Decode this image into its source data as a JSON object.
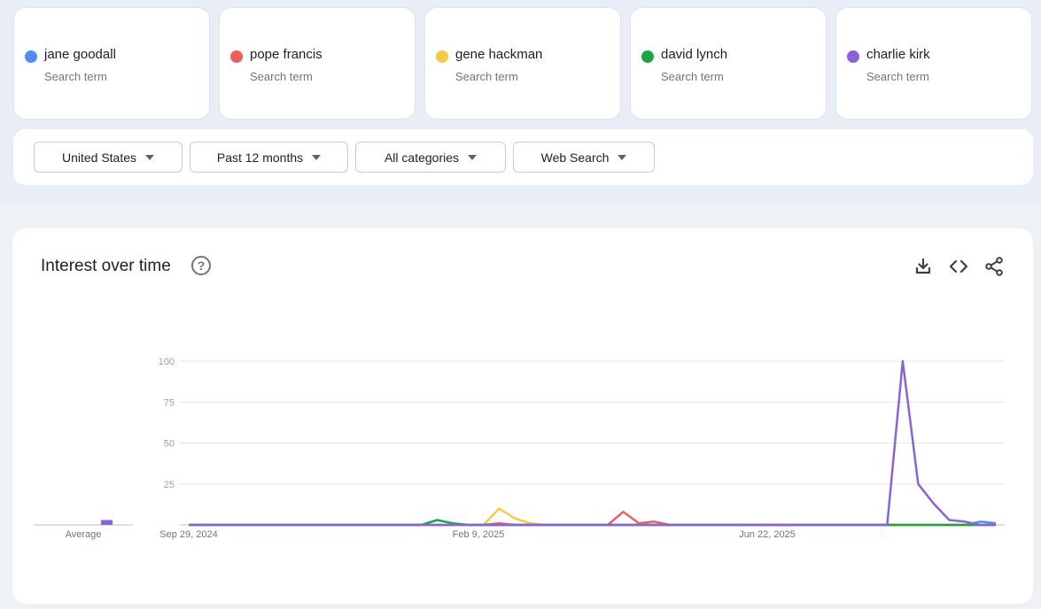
{
  "terms": [
    {
      "name": "jane goodall",
      "sub": "Search term",
      "color": "#4f8ef7"
    },
    {
      "name": "pope francis",
      "sub": "Search term",
      "color": "#e8625b"
    },
    {
      "name": "gene hackman",
      "sub": "Search term",
      "color": "#f7ca46"
    },
    {
      "name": "david lynch",
      "sub": "Search term",
      "color": "#1ea446"
    },
    {
      "name": "charlie kirk",
      "sub": "Search term",
      "color": "#8a63d8"
    }
  ],
  "filters": {
    "region": "United States",
    "time": "Past 12 months",
    "category": "All categories",
    "search_type": "Web Search"
  },
  "panel": {
    "title": "Interest over time",
    "help_icon": "help-circle-icon",
    "actions": [
      "download-icon",
      "embed-code-icon",
      "share-icon"
    ]
  },
  "chart_data": {
    "type": "line",
    "ylim": [
      0,
      100
    ],
    "yticks": [
      25,
      50,
      75,
      100
    ],
    "x_labels": [
      "Sep 29, 2024",
      "Feb 9, 2025",
      "Jun 22, 2025"
    ],
    "average_label": "Average",
    "averages": [
      {
        "name": "jane goodall",
        "value": 0
      },
      {
        "name": "pope francis",
        "value": 0
      },
      {
        "name": "gene hackman",
        "value": 0
      },
      {
        "name": "david lynch",
        "value": 0
      },
      {
        "name": "charlie kirk",
        "value": 3
      }
    ],
    "series": [
      {
        "name": "jane goodall",
        "color": "#4f8ef7",
        "values": [
          0,
          0,
          0,
          0,
          0,
          0,
          0,
          0,
          0,
          0,
          0,
          0,
          0,
          0,
          0,
          0,
          0,
          0,
          0,
          0,
          0,
          0,
          0,
          0,
          0,
          0,
          0,
          0,
          0,
          0,
          0,
          0,
          0,
          0,
          0,
          0,
          0,
          0,
          0,
          0,
          0,
          0,
          0,
          0,
          0,
          0,
          0,
          0,
          0,
          0,
          0,
          2,
          1
        ]
      },
      {
        "name": "pope francis",
        "color": "#e8625b",
        "values": [
          0,
          0,
          0,
          0,
          0,
          0,
          0,
          0,
          0,
          0,
          0,
          0,
          0,
          0,
          0,
          0,
          0,
          0,
          0,
          0,
          1,
          0,
          0,
          0,
          0,
          0,
          0,
          0,
          8,
          1,
          2,
          0,
          0,
          0,
          0,
          0,
          0,
          0,
          0,
          0,
          0,
          0,
          0,
          0,
          0,
          0,
          0,
          0,
          0,
          0,
          0,
          0,
          0
        ]
      },
      {
        "name": "gene hackman",
        "color": "#f7ca46",
        "values": [
          0,
          0,
          0,
          0,
          0,
          0,
          0,
          0,
          0,
          0,
          0,
          0,
          0,
          0,
          0,
          0,
          0,
          0,
          0,
          0,
          10,
          4,
          1,
          0,
          0,
          0,
          0,
          0,
          0,
          0,
          0,
          0,
          0,
          0,
          0,
          0,
          0,
          0,
          0,
          0,
          0,
          0,
          0,
          0,
          0,
          0,
          0,
          0,
          0,
          0,
          0,
          0,
          0
        ]
      },
      {
        "name": "david lynch",
        "color": "#1ea446",
        "values": [
          0,
          0,
          0,
          0,
          0,
          0,
          0,
          0,
          0,
          0,
          0,
          0,
          0,
          0,
          0,
          0,
          3,
          1,
          0,
          0,
          0,
          0,
          0,
          0,
          0,
          0,
          0,
          0,
          0,
          0,
          0,
          0,
          0,
          0,
          0,
          0,
          0,
          0,
          0,
          0,
          0,
          0,
          0,
          0,
          0,
          0,
          0,
          0,
          0,
          0,
          0,
          0,
          0
        ]
      },
      {
        "name": "charlie kirk",
        "color": "#8a63d8",
        "values": [
          0,
          0,
          0,
          0,
          0,
          0,
          0,
          0,
          0,
          0,
          0,
          0,
          0,
          0,
          0,
          0,
          0,
          0,
          0,
          0,
          0,
          0,
          0,
          0,
          0,
          0,
          0,
          0,
          0,
          0,
          0,
          0,
          0,
          0,
          0,
          0,
          0,
          0,
          0,
          0,
          0,
          0,
          0,
          0,
          0,
          0,
          100,
          25,
          13,
          3,
          2,
          0,
          0
        ]
      }
    ]
  }
}
